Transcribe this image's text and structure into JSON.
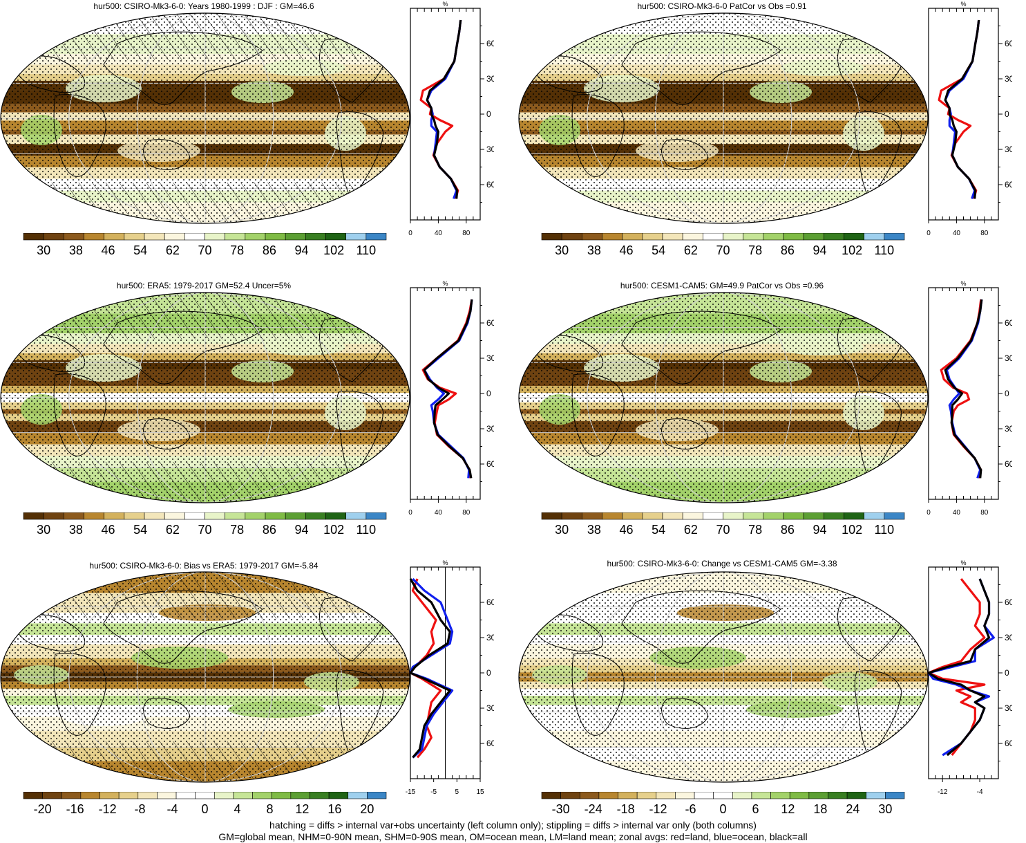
{
  "panels": [
    {
      "title": "hur500: CSIRO-Mk3-6-0: Years 1980-1999 : DJF : GM=46.6",
      "scheme": "abs",
      "pattern": "a",
      "stipple": true,
      "hatch": true,
      "colorbar": {
        "labels": [
          "30",
          "38",
          "46",
          "54",
          "62",
          "70",
          "78",
          "86",
          "94",
          "102",
          "110"
        ]
      },
      "zonal": {
        "unit": "%",
        "xticks": [
          "0",
          "40",
          "80"
        ],
        "xlim": [
          0,
          100
        ],
        "lat": [
          80,
          70,
          60,
          45,
          30,
          20,
          12,
          5,
          0,
          -5,
          -10,
          -15,
          -25,
          -35,
          -45,
          -55,
          -65,
          -72
        ],
        "red": [
          72,
          70,
          67,
          63,
          48,
          18,
          15,
          30,
          28,
          42,
          60,
          50,
          38,
          33,
          42,
          58,
          68,
          65
        ],
        "blue": [
          72,
          70,
          67,
          63,
          50,
          30,
          24,
          30,
          32,
          30,
          30,
          38,
          36,
          34,
          42,
          58,
          66,
          62
        ],
        "black": [
          72,
          70,
          67,
          63,
          48,
          28,
          24,
          30,
          30,
          34,
          36,
          40,
          38,
          34,
          42,
          58,
          67,
          66
        ]
      }
    },
    {
      "title": "hur500: CSIRO-Mk3-6-0 PatCor vs Obs =0.91",
      "scheme": "abs",
      "pattern": "a",
      "stipple": true,
      "hatch": false,
      "colorbar": {
        "labels": [
          "30",
          "38",
          "46",
          "54",
          "62",
          "70",
          "78",
          "86",
          "94",
          "102",
          "110"
        ]
      },
      "zonal": {
        "unit": "%",
        "xticks": [
          "0",
          "40",
          "80"
        ],
        "xlim": [
          0,
          100
        ],
        "lat": [
          80,
          70,
          60,
          45,
          30,
          20,
          12,
          5,
          0,
          -5,
          -10,
          -15,
          -25,
          -35,
          -45,
          -55,
          -65,
          -72
        ],
        "red": [
          72,
          70,
          67,
          63,
          48,
          18,
          15,
          30,
          28,
          42,
          60,
          50,
          38,
          33,
          42,
          58,
          68,
          65
        ],
        "blue": [
          72,
          70,
          67,
          63,
          50,
          30,
          24,
          30,
          32,
          30,
          30,
          38,
          36,
          34,
          42,
          58,
          66,
          62
        ],
        "black": [
          72,
          70,
          67,
          63,
          48,
          28,
          24,
          30,
          30,
          34,
          36,
          40,
          38,
          34,
          42,
          58,
          67,
          66
        ]
      }
    },
    {
      "title": "hur500: ERA5: 1979-2017 GM=52.4 Uncer=5%",
      "scheme": "abs",
      "pattern": "b",
      "stipple": true,
      "hatch": true,
      "colorbar": {
        "labels": [
          "30",
          "38",
          "46",
          "54",
          "62",
          "70",
          "78",
          "86",
          "94",
          "102",
          "110"
        ]
      },
      "zonal": {
        "unit": "%",
        "xticks": [
          "0",
          "40",
          "80"
        ],
        "xlim": [
          0,
          100
        ],
        "lat": [
          80,
          70,
          60,
          45,
          30,
          20,
          12,
          5,
          0,
          -5,
          -10,
          -15,
          -25,
          -35,
          -45,
          -55,
          -65,
          -72
        ],
        "red": [
          88,
          85,
          80,
          68,
          38,
          18,
          25,
          42,
          65,
          55,
          40,
          38,
          35,
          38,
          55,
          75,
          85,
          86
        ],
        "blue": [
          88,
          86,
          82,
          70,
          40,
          20,
          28,
          38,
          48,
          40,
          30,
          32,
          34,
          40,
          58,
          76,
          84,
          83
        ],
        "black": [
          88,
          86,
          81,
          69,
          38,
          20,
          26,
          40,
          55,
          46,
          36,
          35,
          34,
          39,
          56,
          75,
          85,
          87
        ]
      }
    },
    {
      "title": "hur500: CESM1-CAM5: GM=49.9 PatCor vs Obs =0.96",
      "scheme": "abs",
      "pattern": "b",
      "stipple": true,
      "hatch": false,
      "colorbar": {
        "labels": [
          "30",
          "38",
          "46",
          "54",
          "62",
          "70",
          "78",
          "86",
          "94",
          "102",
          "110"
        ]
      },
      "zonal": {
        "unit": "%",
        "xticks": [
          "0",
          "40",
          "80"
        ],
        "xlim": [
          0,
          100
        ],
        "lat": [
          80,
          70,
          60,
          45,
          30,
          20,
          12,
          5,
          0,
          -5,
          -10,
          -15,
          -25,
          -35,
          -45,
          -55,
          -65,
          -72
        ],
        "red": [
          75,
          73,
          70,
          60,
          40,
          18,
          22,
          35,
          55,
          58,
          42,
          36,
          33,
          36,
          50,
          66,
          75,
          72
        ],
        "blue": [
          76,
          74,
          71,
          62,
          44,
          26,
          30,
          38,
          44,
          36,
          30,
          32,
          34,
          38,
          52,
          66,
          74,
          70
        ],
        "black": [
          76,
          74,
          70,
          61,
          42,
          24,
          28,
          37,
          48,
          42,
          34,
          34,
          33,
          37,
          51,
          66,
          75,
          74
        ]
      }
    },
    {
      "title": "hur500: CSIRO-Mk3-6-0: Bias vs ERA5: 1979-2017 GM=-5.84",
      "scheme": "diff",
      "pattern": "c",
      "stipple": true,
      "hatch": true,
      "colorbar": {
        "labels": [
          "-20",
          "-16",
          "-12",
          "-8",
          "-4",
          "0",
          "4",
          "8",
          "12",
          "16",
          "20"
        ]
      },
      "zonal": {
        "unit": "%",
        "xticks": [
          "-15",
          "-5",
          "5",
          "15"
        ],
        "xlim": [
          -15,
          15
        ],
        "lat": [
          80,
          70,
          60,
          45,
          35,
          25,
          15,
          5,
          0,
          -5,
          -15,
          -25,
          -35,
          -45,
          -55,
          -65,
          -72
        ],
        "red": [
          -12,
          -14,
          -10,
          -4,
          -6,
          -5,
          -8,
          -13,
          -15,
          -10,
          -2,
          -6,
          -7,
          -8,
          -6,
          -9,
          -12
        ],
        "blue": [
          -14,
          -9,
          -2,
          1,
          3,
          2,
          -6,
          -14,
          -15,
          -8,
          3,
          -1,
          -5,
          -8,
          -9,
          -10,
          -14
        ],
        "black": [
          -15,
          -12,
          -6,
          -2,
          2,
          1,
          -7,
          -13,
          -15,
          -9,
          2,
          -2,
          -6,
          -9,
          -10,
          -11,
          -14
        ]
      }
    },
    {
      "title": "hur500: CSIRO-Mk3-6-0: Change vs CESM1-CAM5 GM=-3.38",
      "scheme": "diff",
      "pattern": "d",
      "stipple": true,
      "hatch": false,
      "colorbar": {
        "labels": [
          "-30",
          "-24",
          "-18",
          "-12",
          "-6",
          "0",
          "6",
          "12",
          "18",
          "24",
          "30"
        ]
      },
      "zonal": {
        "unit": "%",
        "xticks": [
          "-12",
          "-4"
        ],
        "xlim": [
          -15,
          0
        ],
        "lat": [
          80,
          70,
          60,
          50,
          40,
          30,
          20,
          10,
          5,
          0,
          -5,
          -10,
          -15,
          -20,
          -25,
          -30,
          -40,
          -50,
          -60,
          -70
        ],
        "red": [
          -8,
          -6,
          -4,
          -4,
          -5,
          -3,
          -6,
          -8,
          -12,
          -15,
          -12,
          -3,
          -9,
          -6,
          -8,
          -5,
          -5,
          -6,
          -8,
          -10
        ],
        "blue": [
          -4,
          -3,
          -2,
          -2,
          -3,
          -1,
          -5,
          -5,
          -10,
          -15,
          -14,
          -9,
          -6,
          -2,
          -5,
          -3,
          -4,
          -6,
          -8,
          -12
        ],
        "black": [
          -4,
          -3,
          -2,
          -2,
          -3,
          -2,
          -5,
          -6,
          -11,
          -15,
          -13,
          -8,
          -6,
          -3,
          -5,
          -3,
          -4,
          -6,
          -8,
          -11
        ]
      }
    }
  ],
  "lat_labels": [
    "60N",
    "30N",
    "0",
    "30S",
    "60S"
  ],
  "abs_colors": [
    "#543005",
    "#6f4311",
    "#8c5a1d",
    "#b8862f",
    "#d3b15d",
    "#e6d08c",
    "#f3e6ba",
    "#fbf6df",
    "#ffffff",
    "#e8f4c9",
    "#c6e597",
    "#a3d26a",
    "#7fbb45",
    "#5c9f33",
    "#397f22",
    "#1f6415",
    "#9fd0ee",
    "#3b86c6"
  ],
  "diff_colors": [
    "#543005",
    "#6f4311",
    "#8c5a1d",
    "#b8862f",
    "#d3b15d",
    "#e6d08c",
    "#f3e6ba",
    "#fbf6df",
    "#ffffff",
    "#ffffff",
    "#e8f4c9",
    "#c6e597",
    "#a3d26a",
    "#7fbb45",
    "#5c9f33",
    "#397f22",
    "#1f6415",
    "#9fd0ee",
    "#3b86c6"
  ],
  "series_colors": {
    "red": "#ee1111",
    "blue": "#1020ee",
    "black": "#000000"
  },
  "footer": {
    "line1": "hatching = diffs > internal var+obs uncertainty (left column only); stippling = diffs > internal var only (both columns)",
    "line2": "GM=global mean, NHM=0-90N mean, SHM=0-90S mean, OM=ocean mean, LM=land mean; zonal avgs: red=land, blue=ocean, black=all"
  }
}
